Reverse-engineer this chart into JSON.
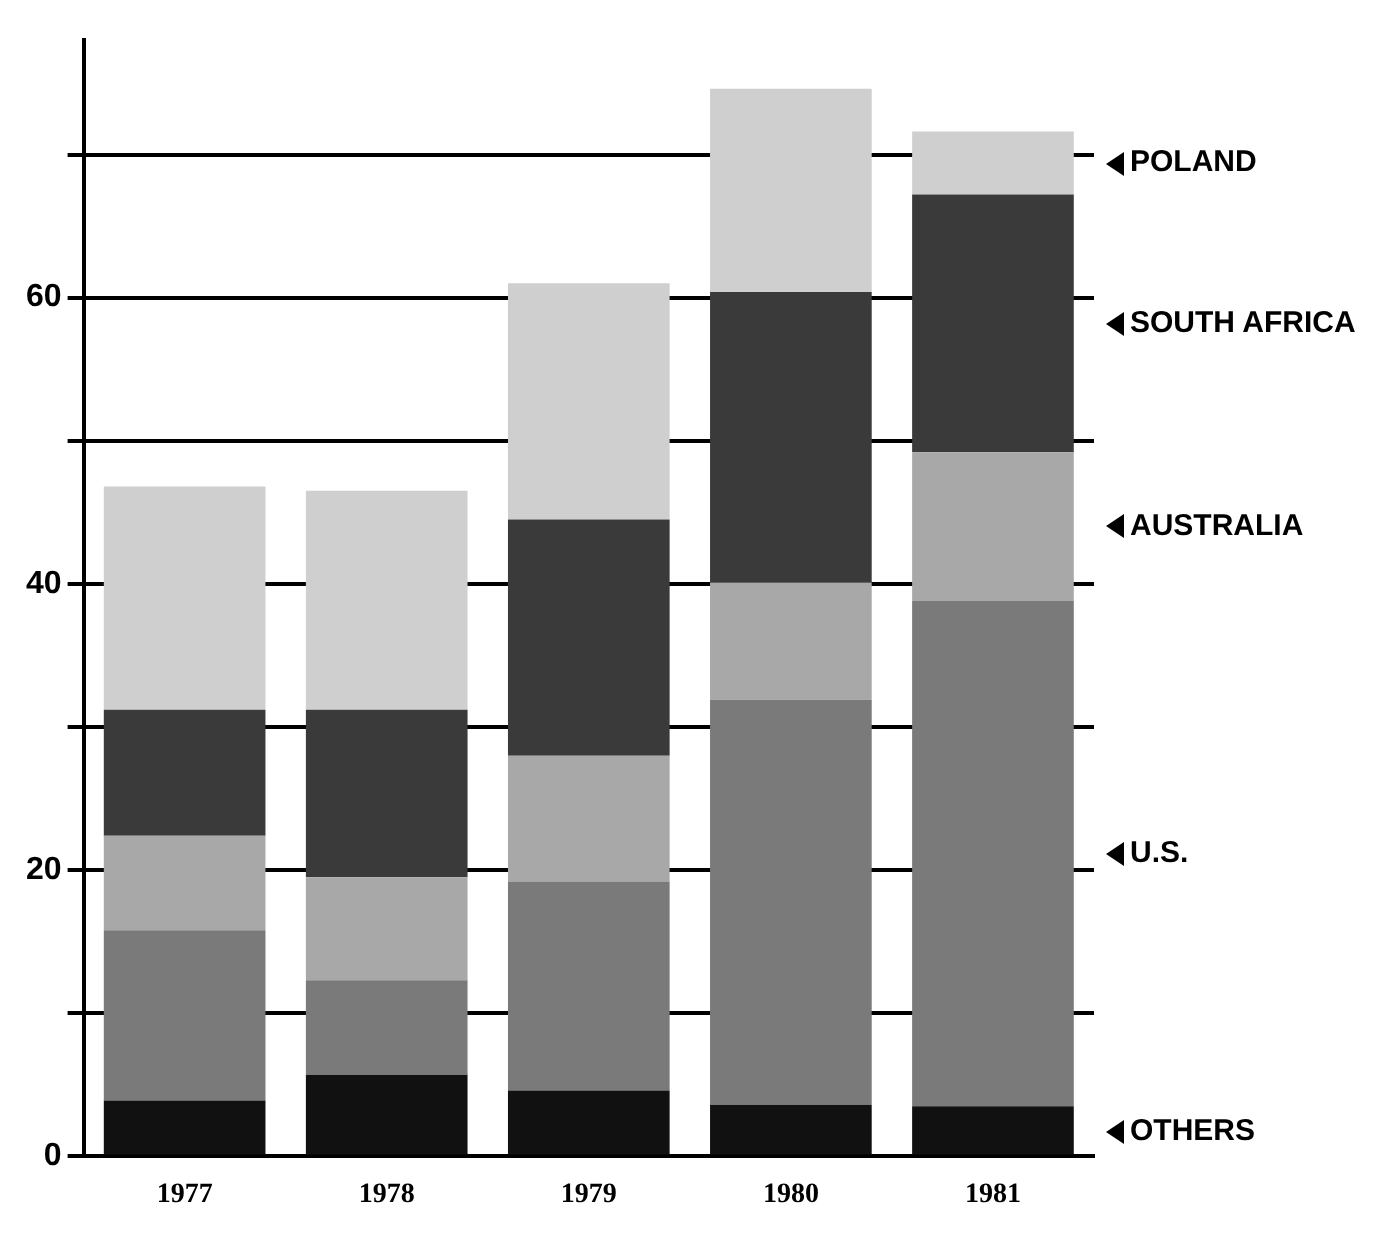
{
  "chart_data": {
    "type": "bar",
    "stacked": true,
    "categories": [
      "1977",
      "1978",
      "1979",
      "1980",
      "1981"
    ],
    "series": [
      {
        "name": "OTHERS",
        "color": "#111111",
        "values": [
          3.9,
          5.7,
          4.6,
          3.6,
          3.5
        ]
      },
      {
        "name": "U.S.",
        "color": "#7a7a7a",
        "values": [
          11.9,
          6.6,
          14.6,
          28.3,
          35.3
        ]
      },
      {
        "name": "AUSTRALIA",
        "color": "#a8a8a8",
        "values": [
          6.6,
          7.2,
          8.8,
          8.2,
          10.4
        ]
      },
      {
        "name": "SOUTH AFRICA",
        "color": "#3a3a3a",
        "values": [
          8.8,
          11.7,
          16.5,
          20.3,
          18.0
        ]
      },
      {
        "name": "POLAND",
        "color": "#cfcfcf",
        "values": [
          15.6,
          15.3,
          16.5,
          14.2,
          4.4
        ]
      }
    ],
    "ylim": [
      0,
      78
    ],
    "yticks": [
      0,
      {
        "value": 10,
        "label": null
      },
      20,
      {
        "value": 30,
        "label": null
      },
      40,
      {
        "value": 50,
        "label": null
      },
      60,
      {
        "value": 70,
        "label": null
      }
    ],
    "grid": "y",
    "legend": "right"
  }
}
